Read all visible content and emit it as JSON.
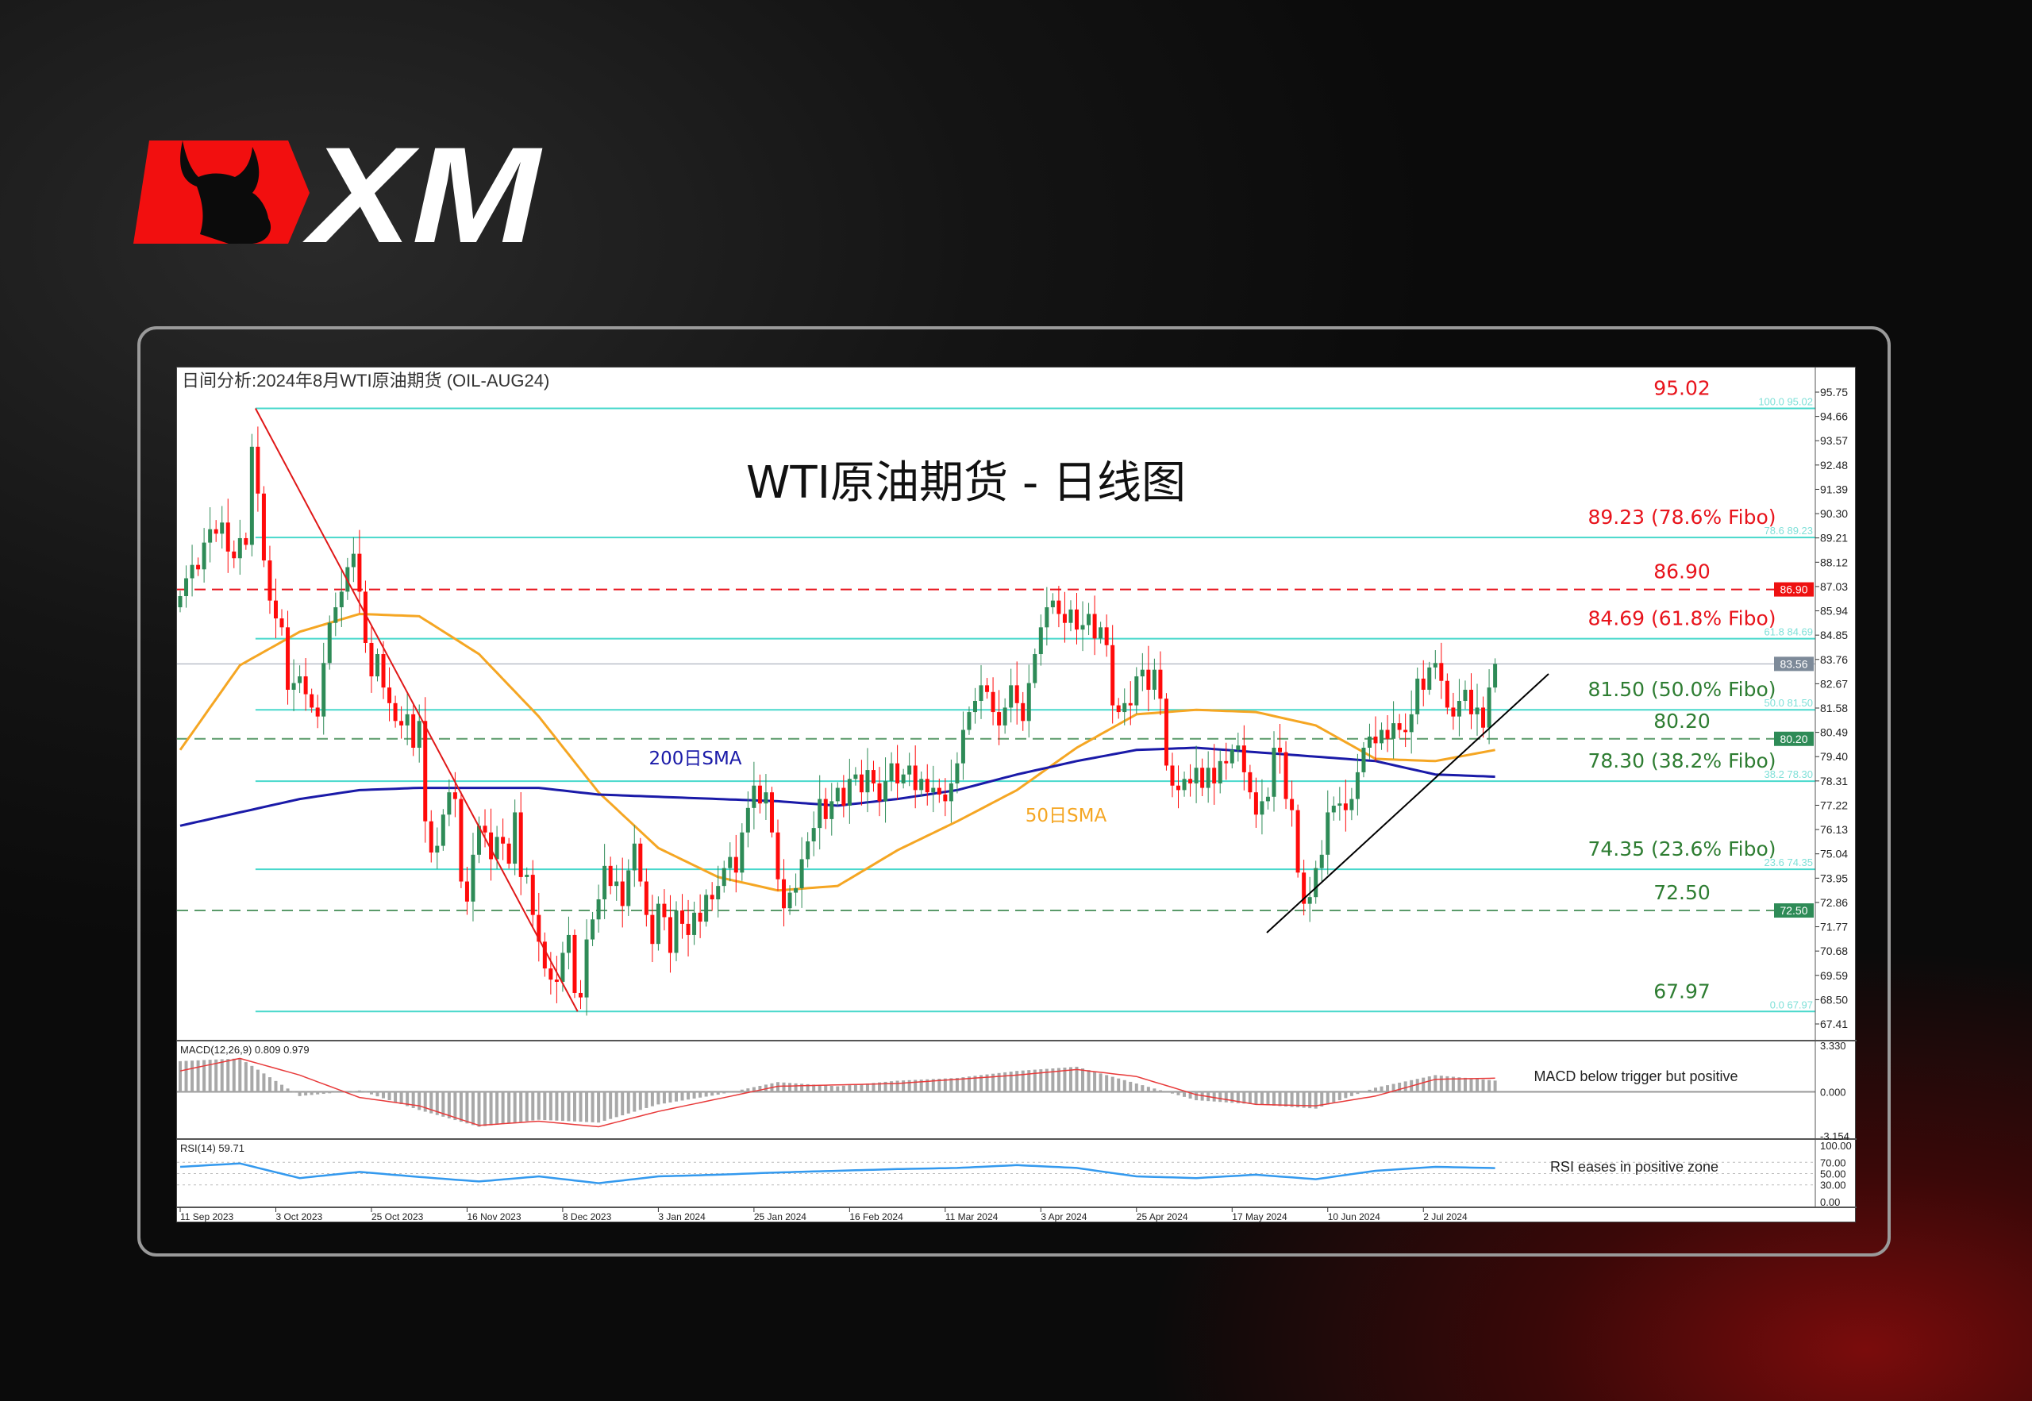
{
  "brand": {
    "logo_text": "XM",
    "red": "#f20f0f"
  },
  "chart_title_top": "日间分析:2024年8月WTI原油期货 (OIL-AUG24)",
  "chart_data": {
    "type": "candlestick",
    "title": "WTI原油期货 - 日线图",
    "symbol": "OIL-AUG24",
    "timeframe": "daily",
    "last_price": 83.56,
    "x_tick_labels": [
      "11 Sep 2023",
      "3 Oct 2023",
      "25 Oct 2023",
      "16 Nov 2023",
      "8 Dec 2023",
      "3 Jan 2024",
      "25 Jan 2024",
      "16 Feb 2024",
      "11 Mar 2024",
      "3 Apr 2024",
      "25 Apr 2024",
      "17 May 2024",
      "10 Jun 2024",
      "2 Jul 2024"
    ],
    "y_tick_labels": [
      "95.75",
      "94.66",
      "93.57",
      "92.48",
      "91.39",
      "90.30",
      "89.21",
      "88.12",
      "87.03",
      "85.94",
      "84.85",
      "83.76",
      "82.67",
      "81.58",
      "80.49",
      "79.40",
      "78.31",
      "77.22",
      "76.13",
      "75.04",
      "73.95",
      "72.86",
      "71.77",
      "70.68",
      "69.59",
      "68.50",
      "67.41"
    ],
    "ylim": [
      67.41,
      95.75
    ],
    "closes": [
      86.6,
      87.4,
      88.0,
      87.8,
      89.0,
      89.6,
      89.4,
      89.9,
      88.6,
      88.3,
      89.2,
      88.9,
      93.3,
      91.2,
      88.2,
      86.4,
      85.6,
      85.2,
      82.4,
      82.7,
      83.0,
      82.2,
      81.6,
      81.2,
      83.6,
      85.4,
      86.1,
      86.8,
      87.9,
      88.5,
      86.8,
      84.5,
      83.0,
      84.0,
      82.5,
      81.8,
      81.0,
      80.8,
      81.3,
      79.8,
      81.0,
      76.5,
      75.1,
      75.4,
      76.8,
      77.8,
      77.5,
      73.8,
      72.9,
      75.0,
      76.3,
      76.0,
      74.8,
      75.8,
      75.5,
      74.6,
      76.9,
      74.0,
      74.1,
      72.3,
      71.1,
      69.9,
      69.4,
      69.3,
      70.6,
      71.4,
      68.8,
      68.6,
      71.2,
      72.1,
      73.0,
      74.5,
      73.6,
      73.8,
      72.7,
      74.3,
      75.5,
      73.8,
      72.3,
      71.0,
      72.8,
      72.2,
      70.6,
      72.5,
      71.9,
      71.4,
      72.4,
      72.0,
      73.2,
      73.0,
      73.6,
      74.4,
      74.9,
      74.2,
      76.0,
      77.1,
      78.1,
      77.3,
      77.8,
      76.0,
      73.9,
      72.6,
      73.3,
      73.5,
      74.8,
      75.6,
      76.2,
      77.5,
      76.6,
      77.4,
      78.0,
      77.2,
      78.4,
      78.6,
      77.8,
      78.8,
      78.2,
      77.4,
      78.3,
      79.1,
      78.2,
      78.6,
      79.0,
      77.9,
      78.4,
      77.8,
      78.0,
      77.7,
      77.4,
      78.2,
      79.1,
      80.6,
      81.4,
      81.9,
      82.6,
      82.3,
      81.4,
      80.8,
      81.6,
      82.6,
      81.8,
      81.0,
      82.7,
      84.0,
      85.2,
      86.1,
      86.4,
      85.8,
      85.4,
      86.0,
      85.1,
      85.3,
      85.8,
      84.7,
      85.2,
      84.4,
      81.7,
      81.4,
      81.8,
      81.7,
      83.0,
      83.3,
      82.4,
      83.3,
      82.0,
      79.0,
      78.1,
      77.9,
      78.4,
      78.2,
      78.9,
      78.0,
      78.9,
      78.2,
      79.2,
      79.1,
      79.7,
      79.9,
      78.7,
      77.8,
      76.8,
      77.4,
      77.6,
      79.8,
      79.6,
      77.5,
      77.0,
      74.2,
      72.8,
      73.1,
      74.4,
      75.0,
      76.9,
      77.2,
      77.3,
      77.0,
      77.5,
      78.7,
      79.8,
      80.3,
      80.0,
      80.6,
      80.2,
      80.9,
      80.6,
      80.5,
      81.3,
      82.9,
      82.4,
      83.4,
      83.6,
      82.8,
      81.6,
      81.2,
      81.9,
      82.4,
      81.3,
      81.6,
      80.7,
      82.5,
      83.56
    ],
    "sma50": {
      "label": "50日SMA",
      "color": "#f5a623",
      "values_every_10_bars": [
        79.7,
        83.5,
        85.0,
        85.8,
        85.7,
        84.0,
        81.2,
        77.8,
        75.3,
        74.0,
        73.4,
        73.6,
        75.2,
        76.5,
        77.9,
        79.8,
        81.3,
        81.5,
        81.4,
        80.8,
        79.3,
        79.2,
        79.7
      ]
    },
    "sma200": {
      "label": "200日SMA",
      "color": "#1a1aa8",
      "values_every_10_bars": [
        76.3,
        76.9,
        77.5,
        77.9,
        78.0,
        78.0,
        78.0,
        77.7,
        77.6,
        77.5,
        77.4,
        77.2,
        77.5,
        77.9,
        78.6,
        79.2,
        79.7,
        79.8,
        79.6,
        79.4,
        79.2,
        78.6,
        78.5
      ]
    },
    "fibonacci": [
      {
        "pct": "100.0",
        "price": 95.02,
        "label": "95.02",
        "small": "100.0 95.02",
        "color": "#e8141c"
      },
      {
        "pct": "78.6",
        "price": 89.23,
        "label": "89.23 (78.6% Fibo)",
        "small": "78.6 89.23",
        "color": "#e8141c"
      },
      {
        "pct": "61.8",
        "price": 84.69,
        "label": "84.69 (61.8% Fibo)",
        "small": "61.8 84.69",
        "color": "#e8141c"
      },
      {
        "pct": "50.0",
        "price": 81.5,
        "label": "81.50 (50.0% Fibo)",
        "small": "50.0 81.50",
        "color": "#2e7d32"
      },
      {
        "pct": "38.2",
        "price": 78.3,
        "label": "78.30 (38.2% Fibo)",
        "small": "38.2 78.30",
        "color": "#2e7d32"
      },
      {
        "pct": "23.6",
        "price": 74.35,
        "label": "74.35 (23.6% Fibo)",
        "small": "23.6 74.35",
        "color": "#2e7d32"
      },
      {
        "pct": "0.0",
        "price": 67.97,
        "label": "67.97",
        "small": "0.0 67.97",
        "color": "#2e7d32"
      }
    ],
    "horizontal_levels": [
      {
        "price": 86.9,
        "label": "86.90",
        "color": "#e8141c",
        "style": "dashed",
        "axis_tag": "86.90",
        "tag_bg": "#ee1111"
      },
      {
        "price": 80.2,
        "label": "80.20",
        "color": "#2e7d32",
        "style": "dashed",
        "axis_tag": "80.20",
        "tag_bg": "#2e8b57"
      },
      {
        "price": 72.5,
        "label": "72.50",
        "color": "#2e7d32",
        "style": "dashed",
        "axis_tag": "72.50",
        "tag_bg": "#2e8b57"
      },
      {
        "price": 83.56,
        "label": "",
        "color": "#9aa0b0",
        "style": "solid",
        "axis_tag": "83.56",
        "tag_bg": "#7d8a99"
      }
    ],
    "macd": {
      "label": "MACD(12,26,9) 0.809 0.979",
      "annotation": "MACD below trigger but positive",
      "ylim": [
        -3.154,
        3.33
      ],
      "y_tick_labels": [
        "3.330",
        "0.000",
        "-3.154"
      ],
      "main_every_10_bars": [
        2.2,
        2.4,
        -0.3,
        0.1,
        -1.3,
        -2.5,
        -2.0,
        -2.2,
        -0.9,
        -0.2,
        0.7,
        0.4,
        0.8,
        1.0,
        1.5,
        1.8,
        0.6,
        -0.6,
        -0.9,
        -1.2,
        0.3,
        1.2,
        0.809
      ],
      "signal_every_10_bars": [
        1.5,
        2.4,
        1.2,
        -0.4,
        -1.0,
        -2.4,
        -2.1,
        -2.5,
        -1.4,
        -0.5,
        0.4,
        0.5,
        0.6,
        0.9,
        1.2,
        1.6,
        1.1,
        -0.2,
        -0.9,
        -1.0,
        -0.3,
        0.9,
        0.979
      ]
    },
    "rsi": {
      "label": "RSI(14) 59.71",
      "annotation": "RSI eases in positive zone",
      "ylim": [
        0,
        100
      ],
      "levels": [
        70,
        50,
        30
      ],
      "y_tick_labels": [
        "100.00",
        "70.00",
        "50.00",
        "30.00",
        "0.00"
      ],
      "values_every_10_bars": [
        62,
        68,
        42,
        53,
        44,
        36,
        45,
        33,
        45,
        48,
        52,
        55,
        58,
        60,
        65,
        60,
        45,
        42,
        48,
        40,
        55,
        62,
        59.71
      ]
    },
    "colors": {
      "up": "#2e8b57",
      "down": "#ff0a0a",
      "fibo_line": "#48d8cc",
      "macd_hist": "#a8a8a8",
      "macd_signal": "#e83a3a",
      "rsi": "#3399ee",
      "trendline": "#000000",
      "fibo_swing": "#e01818"
    }
  }
}
